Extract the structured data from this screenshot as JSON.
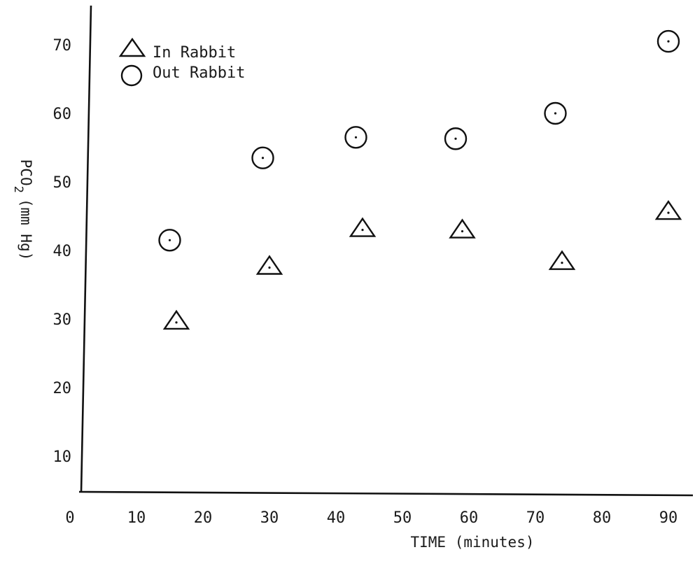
{
  "chart_data": {
    "type": "scatter",
    "title": "",
    "xlabel": "TIME (minutes)",
    "ylabel": "PCO",
    "ylabel_subscript": "2",
    "ylabel_units": "(mm Hg)",
    "xlim": [
      0,
      92
    ],
    "ylim": [
      3,
      75
    ],
    "grid": false,
    "legend_position": "top-left",
    "x_ticks": [
      {
        "value": 0,
        "label": "0"
      },
      {
        "value": 10,
        "label": "10"
      },
      {
        "value": 20,
        "label": "20"
      },
      {
        "value": 30,
        "label": "30"
      },
      {
        "value": 40,
        "label": "40"
      },
      {
        "value": 50,
        "label": "50"
      },
      {
        "value": 60,
        "label": "60"
      },
      {
        "value": 70,
        "label": "70"
      },
      {
        "value": 80,
        "label": "80"
      },
      {
        "value": 90,
        "label": "90"
      }
    ],
    "y_ticks": [
      {
        "value": 10,
        "label": "10"
      },
      {
        "value": 20,
        "label": "20"
      },
      {
        "value": 30,
        "label": "30"
      },
      {
        "value": 40,
        "label": "40"
      },
      {
        "value": 50,
        "label": "50"
      },
      {
        "value": 60,
        "label": "60"
      },
      {
        "value": 70,
        "label": "70"
      }
    ],
    "series": [
      {
        "name": "In Rabbit",
        "marker": "triangle",
        "x": [
          16,
          30,
          44,
          59,
          74,
          90
        ],
        "y": [
          29.5,
          37.5,
          43,
          42.8,
          38.2,
          45.5
        ]
      },
      {
        "name": "Out Rabbit",
        "marker": "circle",
        "x": [
          15,
          29,
          43,
          58,
          73,
          90
        ],
        "y": [
          41.5,
          53.5,
          56.5,
          56.3,
          60,
          70.5
        ]
      }
    ]
  }
}
